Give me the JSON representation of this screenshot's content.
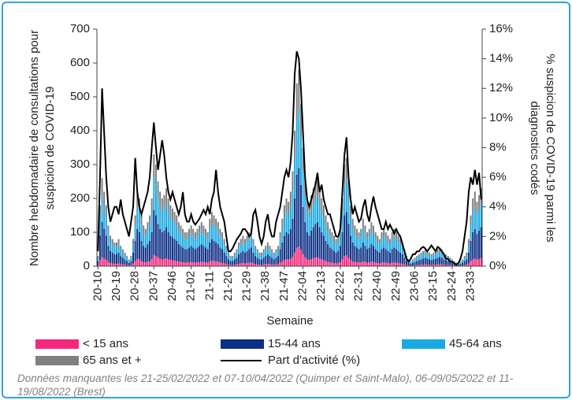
{
  "chart_data": {
    "type": "bar",
    "stacked": true,
    "legend": "bottom",
    "grid": false,
    "y_label": [
      "Nombre hebdomadaire de consultations pour",
      "suspicion de COVID-19"
    ],
    "y2_label": [
      "% suspicion de COVID-19 parmi les",
      "diagnostics codés"
    ],
    "x_label": "Semaine",
    "note": "Données manquantes les 21-25/02/2022 et 07-10/04/2022 (Quimper et Saint-Malo), 06-09/05/2022 et 11-19/08/2022 (Brest)",
    "ylim": [
      0,
      700
    ],
    "yticks": [
      0,
      100,
      200,
      300,
      400,
      500,
      600,
      700
    ],
    "y2lim": [
      0,
      16
    ],
    "y2ticks": [
      {
        "value": 0,
        "label": "0%"
      },
      {
        "value": 2,
        "label": "2%"
      },
      {
        "value": 4,
        "label": "4%"
      },
      {
        "value": 6,
        "label": "6%"
      },
      {
        "value": 8,
        "label": "8%"
      },
      {
        "value": 10,
        "label": "10%"
      },
      {
        "value": 12,
        "label": "12%"
      },
      {
        "value": 14,
        "label": "14%"
      },
      {
        "value": 16,
        "label": "16%"
      }
    ],
    "categories": [
      "20-10",
      null,
      null,
      null,
      null,
      null,
      null,
      null,
      null,
      "20-19",
      null,
      null,
      null,
      null,
      null,
      null,
      null,
      null,
      "20-28",
      null,
      null,
      null,
      null,
      null,
      null,
      null,
      null,
      "20-37",
      null,
      null,
      null,
      null,
      null,
      null,
      null,
      null,
      "20-46",
      null,
      null,
      null,
      null,
      null,
      null,
      null,
      null,
      "21-02",
      null,
      null,
      null,
      null,
      null,
      null,
      null,
      null,
      "21-11",
      null,
      null,
      null,
      null,
      null,
      null,
      null,
      null,
      "21-20",
      null,
      null,
      null,
      null,
      null,
      null,
      null,
      null,
      "21-29",
      null,
      null,
      null,
      null,
      null,
      null,
      null,
      null,
      "21-38",
      null,
      null,
      null,
      null,
      null,
      null,
      null,
      null,
      "21-47",
      null,
      null,
      null,
      null,
      null,
      null,
      null,
      null,
      "22-04",
      null,
      null,
      null,
      null,
      null,
      null,
      null,
      null,
      "22-13",
      null,
      null,
      null,
      null,
      null,
      null,
      null,
      null,
      "22-22",
      null,
      null,
      null,
      null,
      null,
      null,
      null,
      null,
      "22-31",
      null,
      null,
      null,
      null,
      null,
      null,
      null,
      null,
      "22-40",
      null,
      null,
      null,
      null,
      null,
      null,
      null,
      null,
      "22-49",
      null,
      null,
      null,
      null,
      null,
      null,
      null,
      null,
      "23-06",
      null,
      null,
      null,
      null,
      null,
      null,
      null,
      null,
      "23-15",
      null,
      null,
      null,
      null,
      null,
      null,
      null,
      null,
      "23-24",
      null,
      null,
      null,
      null,
      null,
      null,
      null,
      null,
      "23-33",
      null,
      null,
      null,
      null,
      null
    ],
    "series": [
      {
        "name": "< 15 ans",
        "color": "#f5287d",
        "values": [
          3,
          18,
          26,
          22,
          18,
          12,
          9,
          8,
          7,
          7,
          8,
          6,
          5,
          4,
          3,
          2,
          3,
          8,
          15,
          22,
          20,
          15,
          12,
          11,
          13,
          15,
          20,
          33,
          30,
          25,
          22,
          20,
          21,
          23,
          20,
          18,
          17,
          16,
          15,
          13,
          12,
          11,
          10,
          10,
          11,
          12,
          11,
          10,
          11,
          12,
          13,
          12,
          11,
          10,
          14,
          16,
          15,
          14,
          13,
          11,
          10,
          8,
          6,
          4,
          3,
          3,
          4,
          5,
          7,
          8,
          9,
          8,
          9,
          10,
          11,
          8,
          6,
          5,
          4,
          4,
          5,
          6,
          7,
          6,
          5,
          4,
          5,
          6,
          10,
          14,
          18,
          20,
          19,
          22,
          28,
          40,
          54,
          58,
          48,
          35,
          26,
          20,
          18,
          21,
          23,
          25,
          26,
          23,
          20,
          18,
          15,
          13,
          11,
          10,
          9,
          8,
          9,
          12,
          20,
          30,
          32,
          25,
          18,
          14,
          12,
          11,
          10,
          11,
          14,
          12,
          10,
          11,
          13,
          12,
          10,
          9,
          8,
          10,
          11,
          10,
          9,
          8,
          10,
          11,
          10,
          9,
          8,
          7,
          5,
          3,
          2,
          1.5,
          2,
          2.5,
          3,
          3.5,
          4,
          4.5,
          5,
          4.5,
          4,
          3.5,
          4,
          4.5,
          5,
          5.5,
          5,
          4,
          3.5,
          3,
          2.5,
          2,
          1.5,
          1,
          1,
          1.5,
          2,
          3,
          4,
          8,
          15,
          20,
          22,
          19,
          21,
          23
        ]
      },
      {
        "name": "15-44 ans",
        "color": "#0c2f85",
        "values": [
          12,
          72,
          104,
          88,
          72,
          48,
          36,
          32,
          28,
          28,
          32,
          24,
          20,
          16,
          12,
          8,
          12,
          32,
          60,
          88,
          80,
          60,
          48,
          44,
          52,
          60,
          80,
          132,
          120,
          100,
          88,
          80,
          84,
          92,
          80,
          72,
          68,
          64,
          60,
          52,
          48,
          44,
          40,
          40,
          44,
          48,
          44,
          40,
          44,
          48,
          52,
          48,
          44,
          40,
          56,
          64,
          60,
          56,
          52,
          44,
          40,
          32,
          24,
          16,
          12,
          12,
          16,
          20,
          28,
          32,
          36,
          32,
          36,
          40,
          44,
          32,
          24,
          20,
          16,
          16,
          20,
          24,
          28,
          24,
          20,
          16,
          20,
          24,
          40,
          56,
          72,
          80,
          76,
          88,
          112,
          160,
          216,
          232,
          192,
          140,
          104,
          80,
          72,
          84,
          92,
          100,
          104,
          92,
          80,
          72,
          60,
          52,
          44,
          40,
          36,
          32,
          36,
          48,
          80,
          120,
          128,
          100,
          72,
          56,
          48,
          44,
          40,
          44,
          56,
          48,
          40,
          44,
          52,
          48,
          40,
          36,
          32,
          40,
          44,
          40,
          36,
          32,
          40,
          44,
          40,
          36,
          32,
          28,
          20,
          12,
          8,
          6,
          8,
          10,
          12,
          14,
          16,
          18,
          20,
          18,
          16,
          14,
          16,
          18,
          20,
          22,
          20,
          16,
          14,
          12,
          10,
          8,
          6,
          4,
          4,
          6,
          8,
          12,
          16,
          32,
          60,
          80,
          88,
          76,
          84,
          92
        ]
      },
      {
        "name": "45-64 ans",
        "color": "#1aaae3",
        "values": [
          9,
          54,
          78,
          66,
          54,
          36,
          27,
          24,
          21,
          21,
          24,
          18,
          15,
          12,
          9,
          6,
          9,
          24,
          45,
          66,
          60,
          45,
          36,
          33,
          39,
          45,
          60,
          99,
          90,
          75,
          66,
          60,
          63,
          69,
          60,
          54,
          51,
          48,
          45,
          39,
          36,
          33,
          30,
          30,
          33,
          36,
          33,
          30,
          33,
          36,
          39,
          36,
          33,
          30,
          42,
          48,
          45,
          42,
          39,
          33,
          30,
          24,
          18,
          12,
          9,
          9,
          12,
          15,
          21,
          24,
          27,
          24,
          27,
          30,
          33,
          24,
          18,
          15,
          12,
          12,
          15,
          18,
          21,
          18,
          15,
          12,
          15,
          18,
          30,
          42,
          54,
          60,
          57,
          66,
          84,
          120,
          162,
          174,
          144,
          105,
          78,
          60,
          54,
          63,
          69,
          75,
          78,
          69,
          60,
          54,
          45,
          39,
          33,
          30,
          27,
          24,
          27,
          36,
          60,
          90,
          96,
          75,
          54,
          42,
          36,
          33,
          30,
          33,
          42,
          36,
          30,
          33,
          39,
          36,
          30,
          27,
          24,
          30,
          33,
          30,
          27,
          24,
          30,
          33,
          30,
          27,
          24,
          21,
          15,
          9,
          6,
          4.5,
          6,
          7.5,
          9,
          10.5,
          12,
          13.5,
          15,
          13.5,
          12,
          10.5,
          12,
          13.5,
          15,
          16.5,
          15,
          12,
          10.5,
          9,
          7.5,
          6,
          4.5,
          3,
          3,
          4.5,
          6,
          9,
          12,
          24,
          45,
          60,
          66,
          57,
          63,
          69
        ]
      },
      {
        "name": "65 ans et +",
        "color": "#808080",
        "values": [
          6,
          36,
          52,
          44,
          36,
          24,
          18,
          16,
          14,
          14,
          16,
          12,
          10,
          8,
          6,
          4,
          6,
          16,
          30,
          44,
          40,
          30,
          24,
          22,
          26,
          30,
          40,
          66,
          60,
          50,
          44,
          40,
          42,
          46,
          40,
          36,
          34,
          32,
          30,
          26,
          24,
          22,
          20,
          20,
          22,
          24,
          22,
          20,
          22,
          24,
          26,
          24,
          22,
          20,
          28,
          32,
          30,
          28,
          26,
          22,
          20,
          16,
          12,
          8,
          6,
          6,
          8,
          10,
          14,
          16,
          18,
          16,
          18,
          20,
          22,
          16,
          12,
          10,
          8,
          8,
          10,
          12,
          14,
          12,
          10,
          8,
          10,
          12,
          20,
          28,
          36,
          40,
          38,
          44,
          56,
          80,
          108,
          116,
          96,
          70,
          52,
          40,
          36,
          42,
          46,
          50,
          52,
          46,
          40,
          36,
          30,
          26,
          22,
          20,
          18,
          16,
          18,
          24,
          40,
          60,
          64,
          50,
          36,
          28,
          24,
          22,
          20,
          22,
          28,
          24,
          20,
          22,
          26,
          24,
          20,
          18,
          16,
          20,
          22,
          20,
          18,
          16,
          20,
          22,
          20,
          18,
          16,
          14,
          10,
          6,
          4,
          3,
          4,
          5,
          6,
          7,
          8,
          9,
          10,
          9,
          8,
          7,
          8,
          9,
          10,
          11,
          10,
          8,
          7,
          6,
          5,
          4,
          3,
          2,
          2,
          3,
          4,
          6,
          8,
          16,
          30,
          40,
          44,
          38,
          42,
          46
        ]
      },
      {
        "name": "Part d'activité (%)",
        "color": "#000000",
        "type": "line",
        "axis": "y2",
        "values": [
          1,
          6,
          12,
          9,
          6,
          4,
          3,
          3.5,
          4,
          4,
          3.5,
          4.5,
          3.5,
          3,
          2.5,
          2,
          3,
          4,
          7.3,
          5,
          4,
          3.5,
          4,
          4.5,
          5,
          6,
          8,
          9.7,
          8,
          6.5,
          7.5,
          8.5,
          7.5,
          6,
          5,
          4.5,
          5,
          4.5,
          4,
          3.5,
          4,
          5,
          3.5,
          3,
          3,
          3.5,
          3,
          2.8,
          3,
          3.2,
          3.5,
          3.8,
          3.5,
          4,
          3.5,
          4.5,
          5,
          6.5,
          5,
          4,
          3.5,
          3,
          2,
          1,
          1,
          1.2,
          1.5,
          1.8,
          2,
          2.2,
          2.5,
          2.5,
          2.3,
          2,
          2.2,
          3.5,
          3.8,
          3,
          2,
          1.5,
          2,
          3,
          3.5,
          2.5,
          2,
          2,
          3,
          3.5,
          4,
          5,
          6,
          6.5,
          6,
          7,
          9,
          13,
          14.5,
          14,
          12,
          9,
          6,
          4.5,
          4,
          4.5,
          5,
          5.5,
          6.3,
          5,
          5.5,
          4.5,
          4,
          3.5,
          3.5,
          3,
          2.5,
          2,
          2,
          2.5,
          5,
          7.5,
          8.7,
          6,
          4.5,
          3.5,
          4,
          3.5,
          3,
          3.2,
          4,
          4.5,
          3.5,
          3,
          4,
          4.7,
          4,
          3.5,
          3,
          2.5,
          2.5,
          3,
          2.5,
          2.8,
          2.5,
          2.2,
          2.5,
          2.2,
          2,
          1.5,
          1,
          0.5,
          0.3,
          0.5,
          0.8,
          0.8,
          1,
          1,
          1.2,
          1.3,
          1.2,
          1,
          1.2,
          1.4,
          1.2,
          1,
          1.3,
          1.2,
          1,
          0.8,
          0.5,
          0.5,
          0.3,
          0.3,
          0.2,
          0.1,
          0.2,
          0.5,
          1,
          2,
          3,
          5,
          6,
          5.5,
          6.5,
          5.5,
          6.3,
          4.5
        ]
      }
    ]
  }
}
